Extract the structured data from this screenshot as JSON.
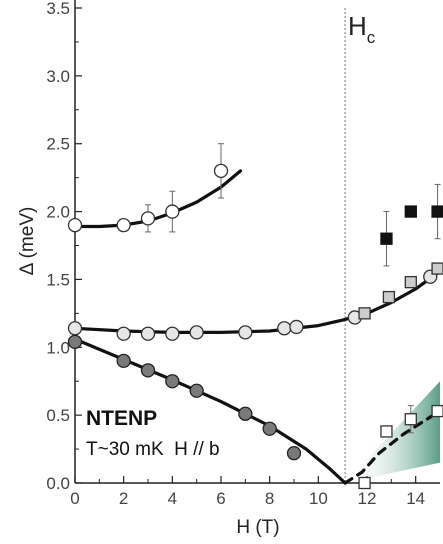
{
  "chart_data": {
    "type": "scatter",
    "title": "",
    "xlabel": "H (T)",
    "ylabel": "Δ (meV)",
    "xlim": [
      0,
      15
    ],
    "ylim": [
      0,
      3.5
    ],
    "x_ticks": [
      "0",
      "2",
      "4",
      "6",
      "8",
      "10",
      "12",
      "14"
    ],
    "y_ticks": [
      "0.0",
      "0.5",
      "1.0",
      "1.5",
      "2.0",
      "2.5",
      "3.0",
      "3.5"
    ],
    "critical_field": {
      "x": 11.1,
      "label": "H",
      "subscript": "c"
    },
    "annotations": {
      "sample": "NTENP",
      "conditions": "T~30 mK  H // b"
    },
    "series": [
      {
        "marker": "circle-open",
        "points": [
          [
            0,
            1.9
          ],
          [
            2,
            1.9
          ],
          [
            3,
            1.95
          ],
          [
            4,
            2.0
          ],
          [
            6,
            2.3
          ]
        ],
        "errors": [
          0,
          0,
          0.1,
          0.15,
          0.2
        ]
      },
      {
        "marker": "circle-light",
        "points": [
          [
            0,
            1.14
          ],
          [
            2,
            1.1
          ],
          [
            3,
            1.1
          ],
          [
            4,
            1.1
          ],
          [
            5,
            1.11
          ],
          [
            7,
            1.11
          ],
          [
            8.6,
            1.14
          ],
          [
            9.1,
            1.15
          ],
          [
            11.5,
            1.22
          ],
          [
            14.6,
            1.52
          ]
        ],
        "errors": [
          0,
          0,
          0,
          0,
          0,
          0,
          0,
          0,
          0,
          0
        ]
      },
      {
        "marker": "circle-dark",
        "points": [
          [
            0,
            1.04
          ],
          [
            2,
            0.9
          ],
          [
            3,
            0.83
          ],
          [
            4,
            0.75
          ],
          [
            5,
            0.68
          ],
          [
            7,
            0.51
          ],
          [
            8,
            0.4
          ],
          [
            9,
            0.22
          ]
        ],
        "errors": [
          0,
          0,
          0,
          0,
          0,
          0,
          0,
          0
        ]
      },
      {
        "marker": "square-gray",
        "points": [
          [
            11.9,
            1.25
          ],
          [
            12.9,
            1.37
          ],
          [
            13.8,
            1.48
          ],
          [
            14.9,
            1.58
          ]
        ],
        "errors": [
          0,
          0,
          0,
          0
        ]
      },
      {
        "marker": "square-black",
        "points": [
          [
            12.8,
            1.8
          ],
          [
            13.8,
            2.0
          ],
          [
            14.9,
            2.0
          ]
        ],
        "errors": [
          0.2,
          0,
          0.2
        ]
      },
      {
        "marker": "square-open",
        "points": [
          [
            11.9,
            0.0
          ],
          [
            12.8,
            0.38
          ],
          [
            13.8,
            0.47
          ],
          [
            14.9,
            0.53
          ]
        ],
        "errors": [
          0,
          0,
          0.1,
          0
        ]
      }
    ],
    "fit_lines": [
      {
        "style": "solid",
        "points": [
          [
            0,
            1.89
          ],
          [
            1,
            1.89
          ],
          [
            2,
            1.9
          ],
          [
            3,
            1.93
          ],
          [
            4,
            1.99
          ],
          [
            5,
            2.07
          ],
          [
            6,
            2.18
          ],
          [
            6.8,
            2.3
          ]
        ]
      },
      {
        "style": "solid",
        "points": [
          [
            0,
            1.14
          ],
          [
            2,
            1.12
          ],
          [
            4,
            1.11
          ],
          [
            6,
            1.11
          ],
          [
            8,
            1.12
          ],
          [
            10,
            1.16
          ],
          [
            11,
            1.2
          ],
          [
            12,
            1.25
          ],
          [
            13,
            1.33
          ],
          [
            14,
            1.43
          ],
          [
            15,
            1.56
          ]
        ]
      },
      {
        "style": "solid",
        "points": [
          [
            0,
            1.06
          ],
          [
            2,
            0.91
          ],
          [
            4,
            0.76
          ],
          [
            6,
            0.6
          ],
          [
            8,
            0.42
          ],
          [
            9.5,
            0.25
          ],
          [
            10.5,
            0.1
          ],
          [
            11.1,
            0.0
          ]
        ]
      },
      {
        "style": "dashed",
        "points": [
          [
            11.1,
            0.0
          ],
          [
            11.8,
            0.08
          ],
          [
            12.5,
            0.22
          ],
          [
            13.5,
            0.36
          ],
          [
            14.9,
            0.52
          ]
        ]
      }
    ],
    "shaded_region": {
      "color": "#3c8c70",
      "x_start": 11.1,
      "x_end": 15,
      "y_low_start": 0.0,
      "y_high_start": 0.0,
      "y_low_end": 0.15,
      "y_high_end": 0.75
    }
  }
}
